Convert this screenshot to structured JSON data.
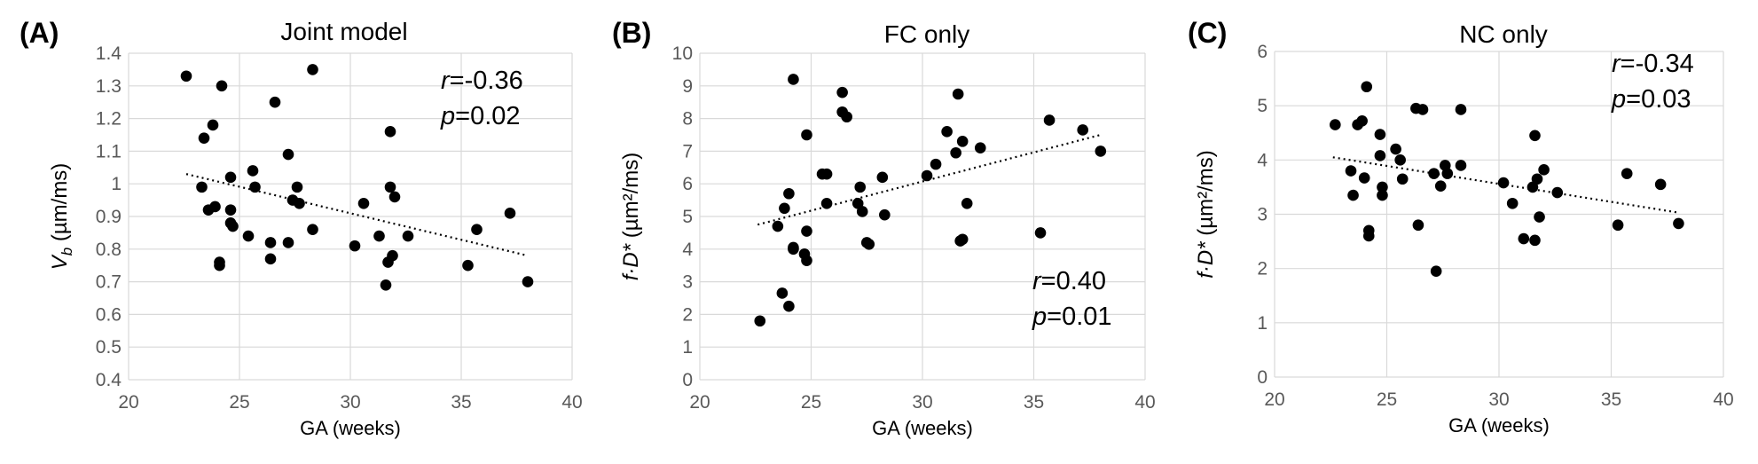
{
  "chart_data": [
    {
      "type": "scatter",
      "panel_label": "(A)",
      "title": "Joint model",
      "xlabel": "GA (weeks)",
      "ylabel_main": "V",
      "ylabel_sub": "b",
      "ylabel_rest": " (µm/ms)",
      "xlim": [
        20,
        40
      ],
      "ylim": [
        0.4,
        1.4
      ],
      "xticks": [
        "20",
        "25",
        "30",
        "35",
        "40"
      ],
      "yticks": [
        "0.4",
        "0.5",
        "0.6",
        "0.7",
        "0.8",
        "0.9",
        "1",
        "1.1",
        "1.2",
        "1.3",
        "1.4"
      ],
      "grid": true,
      "stats": {
        "r_symbol": "r",
        "r_value": "=-0.36",
        "p_symbol": "p",
        "p_value": "=0.02",
        "position": "top-right"
      },
      "trendline": {
        "x": [
          22.6,
          38.0
        ],
        "y": [
          1.03,
          0.78
        ]
      },
      "points": [
        [
          22.6,
          1.33
        ],
        [
          23.3,
          0.99
        ],
        [
          23.4,
          1.14
        ],
        [
          23.6,
          0.92
        ],
        [
          23.8,
          1.18
        ],
        [
          23.9,
          0.93
        ],
        [
          24.1,
          0.76
        ],
        [
          24.1,
          0.75
        ],
        [
          24.2,
          1.3
        ],
        [
          24.6,
          1.02
        ],
        [
          24.6,
          0.92
        ],
        [
          24.6,
          0.88
        ],
        [
          24.7,
          0.87
        ],
        [
          25.4,
          0.84
        ],
        [
          25.6,
          1.04
        ],
        [
          25.7,
          0.99
        ],
        [
          26.4,
          0.82
        ],
        [
          26.4,
          0.77
        ],
        [
          26.6,
          1.25
        ],
        [
          27.2,
          1.09
        ],
        [
          27.2,
          0.82
        ],
        [
          27.4,
          0.95
        ],
        [
          27.6,
          0.99
        ],
        [
          27.7,
          0.94
        ],
        [
          28.3,
          1.35
        ],
        [
          28.3,
          0.86
        ],
        [
          30.2,
          0.81
        ],
        [
          30.6,
          0.94
        ],
        [
          31.3,
          0.84
        ],
        [
          31.6,
          0.69
        ],
        [
          31.7,
          0.76
        ],
        [
          31.8,
          0.99
        ],
        [
          31.8,
          1.16
        ],
        [
          31.9,
          0.78
        ],
        [
          32.0,
          0.96
        ],
        [
          32.6,
          0.84
        ],
        [
          35.3,
          0.75
        ],
        [
          35.7,
          0.86
        ],
        [
          37.2,
          0.91
        ],
        [
          38.0,
          0.7
        ]
      ]
    },
    {
      "type": "scatter",
      "panel_label": "(B)",
      "title": "FC only",
      "xlabel": "GA (weeks)",
      "ylabel_main": "f·D*",
      "ylabel_sub": "",
      "ylabel_rest": " (µm²/ms)",
      "xlim": [
        20,
        40
      ],
      "ylim": [
        0,
        10
      ],
      "xticks": [
        "20",
        "25",
        "30",
        "35",
        "40"
      ],
      "yticks": [
        "0",
        "1",
        "2",
        "3",
        "4",
        "5",
        "6",
        "7",
        "8",
        "9",
        "10"
      ],
      "grid": true,
      "stats": {
        "r_symbol": "r",
        "r_value": "=0.40",
        "p_symbol": "p",
        "p_value": "=0.01",
        "position": "bottom-right"
      },
      "trendline": {
        "x": [
          22.6,
          38.0
        ],
        "y": [
          4.75,
          7.5
        ]
      },
      "points": [
        [
          22.7,
          1.8
        ],
        [
          23.5,
          4.7
        ],
        [
          23.7,
          2.65
        ],
        [
          23.8,
          5.25
        ],
        [
          24.0,
          5.7
        ],
        [
          24.0,
          2.25
        ],
        [
          24.2,
          4.05
        ],
        [
          24.2,
          4.0
        ],
        [
          24.2,
          9.2
        ],
        [
          24.7,
          3.85
        ],
        [
          24.8,
          3.65
        ],
        [
          24.8,
          4.55
        ],
        [
          24.8,
          7.5
        ],
        [
          25.5,
          6.3
        ],
        [
          25.7,
          6.3
        ],
        [
          25.7,
          5.4
        ],
        [
          26.4,
          8.8
        ],
        [
          26.4,
          8.2
        ],
        [
          26.6,
          8.05
        ],
        [
          27.1,
          5.4
        ],
        [
          27.2,
          5.9
        ],
        [
          27.3,
          5.15
        ],
        [
          27.5,
          4.2
        ],
        [
          27.6,
          4.15
        ],
        [
          28.2,
          6.2
        ],
        [
          28.3,
          5.05
        ],
        [
          30.2,
          6.25
        ],
        [
          30.6,
          6.6
        ],
        [
          31.1,
          7.6
        ],
        [
          31.5,
          6.95
        ],
        [
          31.6,
          8.75
        ],
        [
          31.7,
          4.25
        ],
        [
          31.8,
          4.3
        ],
        [
          31.8,
          7.3
        ],
        [
          32.0,
          5.4
        ],
        [
          32.6,
          7.1
        ],
        [
          35.3,
          4.5
        ],
        [
          35.7,
          7.95
        ],
        [
          37.2,
          7.65
        ],
        [
          38.0,
          7.0
        ]
      ]
    },
    {
      "type": "scatter",
      "panel_label": "(C)",
      "title": "NC only",
      "xlabel": "GA (weeks)",
      "ylabel_main": "f·D*",
      "ylabel_sub": "",
      "ylabel_rest": " (µm²/ms)",
      "xlim": [
        20,
        40
      ],
      "ylim": [
        0,
        6
      ],
      "xticks": [
        "20",
        "25",
        "30",
        "35",
        "40"
      ],
      "yticks": [
        "0",
        "1",
        "2",
        "3",
        "4",
        "5",
        "6"
      ],
      "grid": true,
      "stats": {
        "r_symbol": "r",
        "r_value": "=-0.34",
        "p_symbol": "p",
        "p_value": "=0.03",
        "position": "top-right"
      },
      "trendline": {
        "x": [
          22.6,
          38.0
        ],
        "y": [
          4.05,
          3.03
        ]
      },
      "points": [
        [
          22.7,
          4.65
        ],
        [
          23.4,
          3.8
        ],
        [
          23.5,
          3.35
        ],
        [
          23.7,
          4.65
        ],
        [
          23.9,
          4.72
        ],
        [
          24.0,
          3.67
        ],
        [
          24.1,
          5.35
        ],
        [
          24.2,
          2.7
        ],
        [
          24.2,
          2.6
        ],
        [
          24.7,
          4.47
        ],
        [
          24.7,
          4.08
        ],
        [
          24.8,
          3.5
        ],
        [
          24.8,
          3.35
        ],
        [
          25.4,
          4.2
        ],
        [
          25.6,
          4.0
        ],
        [
          25.7,
          3.65
        ],
        [
          26.3,
          4.95
        ],
        [
          26.4,
          2.8
        ],
        [
          26.6,
          4.93
        ],
        [
          27.1,
          3.75
        ],
        [
          27.2,
          1.95
        ],
        [
          27.4,
          3.52
        ],
        [
          27.6,
          3.9
        ],
        [
          27.7,
          3.75
        ],
        [
          28.3,
          4.93
        ],
        [
          28.3,
          3.9
        ],
        [
          30.2,
          3.58
        ],
        [
          30.6,
          3.2
        ],
        [
          31.1,
          2.55
        ],
        [
          31.5,
          3.5
        ],
        [
          31.6,
          2.52
        ],
        [
          31.6,
          4.45
        ],
        [
          31.7,
          3.65
        ],
        [
          31.8,
          2.95
        ],
        [
          32.0,
          3.82
        ],
        [
          32.6,
          3.4
        ],
        [
          35.3,
          2.8
        ],
        [
          35.7,
          3.75
        ],
        [
          37.2,
          3.55
        ],
        [
          38.0,
          2.83
        ]
      ]
    }
  ]
}
